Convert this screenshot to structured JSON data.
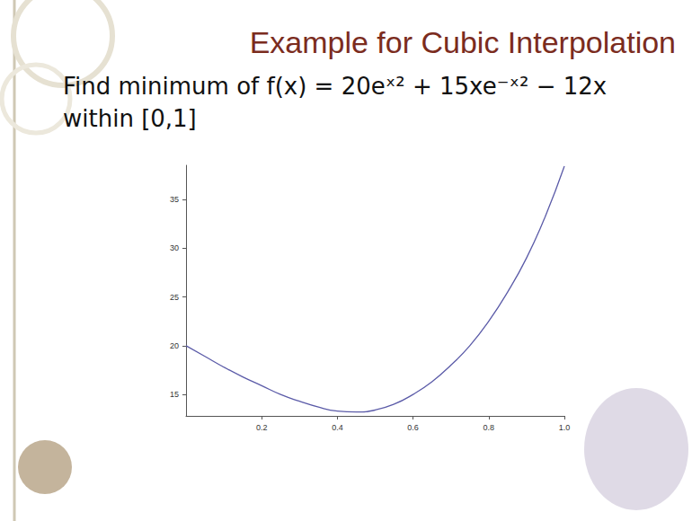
{
  "chart_data": {
    "type": "line",
    "title": "Example for Cubic Interpolation",
    "subtitle": "Find minimum of f(x) = 20eˣ² + 15xe⁻ˣ² − 12x within [0,1]",
    "x": [
      0,
      0.05,
      0.1,
      0.15,
      0.2,
      0.25,
      0.3,
      0.35,
      0.4,
      0.45,
      0.5,
      0.55,
      0.6,
      0.65,
      0.7,
      0.75,
      0.8,
      0.85,
      0.9,
      0.95,
      1.0
    ],
    "values": [
      20.0,
      18.9,
      17.8,
      16.8,
      15.9,
      15.0,
      14.3,
      13.7,
      13.3,
      13.2,
      13.4,
      14.0,
      15.0,
      16.3,
      18.0,
      20.0,
      22.5,
      25.5,
      29.0,
      33.3,
      38.4
    ],
    "color": "#5b5ba8",
    "xlim": [
      0,
      1
    ],
    "xticks": [
      0.2,
      0.4,
      0.6,
      0.8,
      {
        "value": 1,
        "label": "1.0"
      }
    ],
    "ylim": [
      12.8,
      38.5
    ],
    "yticks": [
      15,
      20,
      25,
      30,
      35
    ],
    "grid": false
  }
}
